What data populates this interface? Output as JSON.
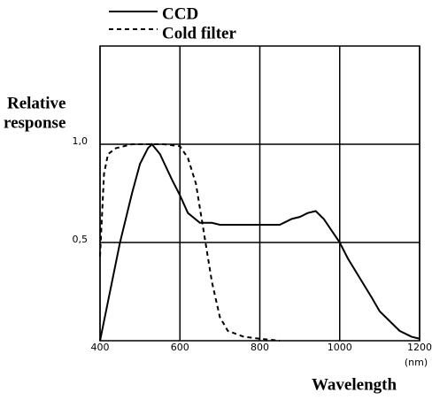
{
  "chart_data": {
    "type": "line",
    "y_label": [
      "Relative",
      "response"
    ],
    "x_label": "Wavelength",
    "x_unit": "(nm)",
    "xlim": [
      400,
      1200
    ],
    "xticks": [
      400,
      600,
      800,
      1000,
      1200
    ],
    "ylim": [
      0,
      1.5
    ],
    "yticks": [
      {
        "value": 0.5,
        "label": "0,5"
      },
      {
        "value": 1,
        "label": "1,0"
      }
    ],
    "grid": true,
    "series": [
      {
        "name": "CCD",
        "color": "#000000",
        "linestyle": "solid",
        "x": [
          400,
          420,
          450,
          480,
          500,
          520,
          530,
          550,
          580,
          600,
          620,
          650,
          680,
          700,
          750,
          800,
          850,
          880,
          900,
          920,
          940,
          960,
          980,
          1000,
          1020,
          1050,
          1080,
          1100,
          1150,
          1180,
          1200
        ],
        "values": [
          0.0,
          0.2,
          0.5,
          0.75,
          0.9,
          0.98,
          1.0,
          0.95,
          0.82,
          0.74,
          0.65,
          0.6,
          0.6,
          0.59,
          0.59,
          0.59,
          0.59,
          0.62,
          0.63,
          0.65,
          0.66,
          0.62,
          0.56,
          0.5,
          0.42,
          0.32,
          0.22,
          0.15,
          0.05,
          0.02,
          0.01
        ]
      },
      {
        "name": "Cold filter",
        "color": "#000000",
        "linestyle": "dashed",
        "x": [
          400,
          410,
          420,
          440,
          480,
          560,
          600,
          620,
          640,
          660,
          680,
          700,
          720,
          760,
          800,
          850
        ],
        "values": [
          0.43,
          0.85,
          0.95,
          0.98,
          1.0,
          1.0,
          0.99,
          0.93,
          0.8,
          0.55,
          0.3,
          0.12,
          0.05,
          0.02,
          0.01,
          0.0
        ]
      }
    ]
  }
}
